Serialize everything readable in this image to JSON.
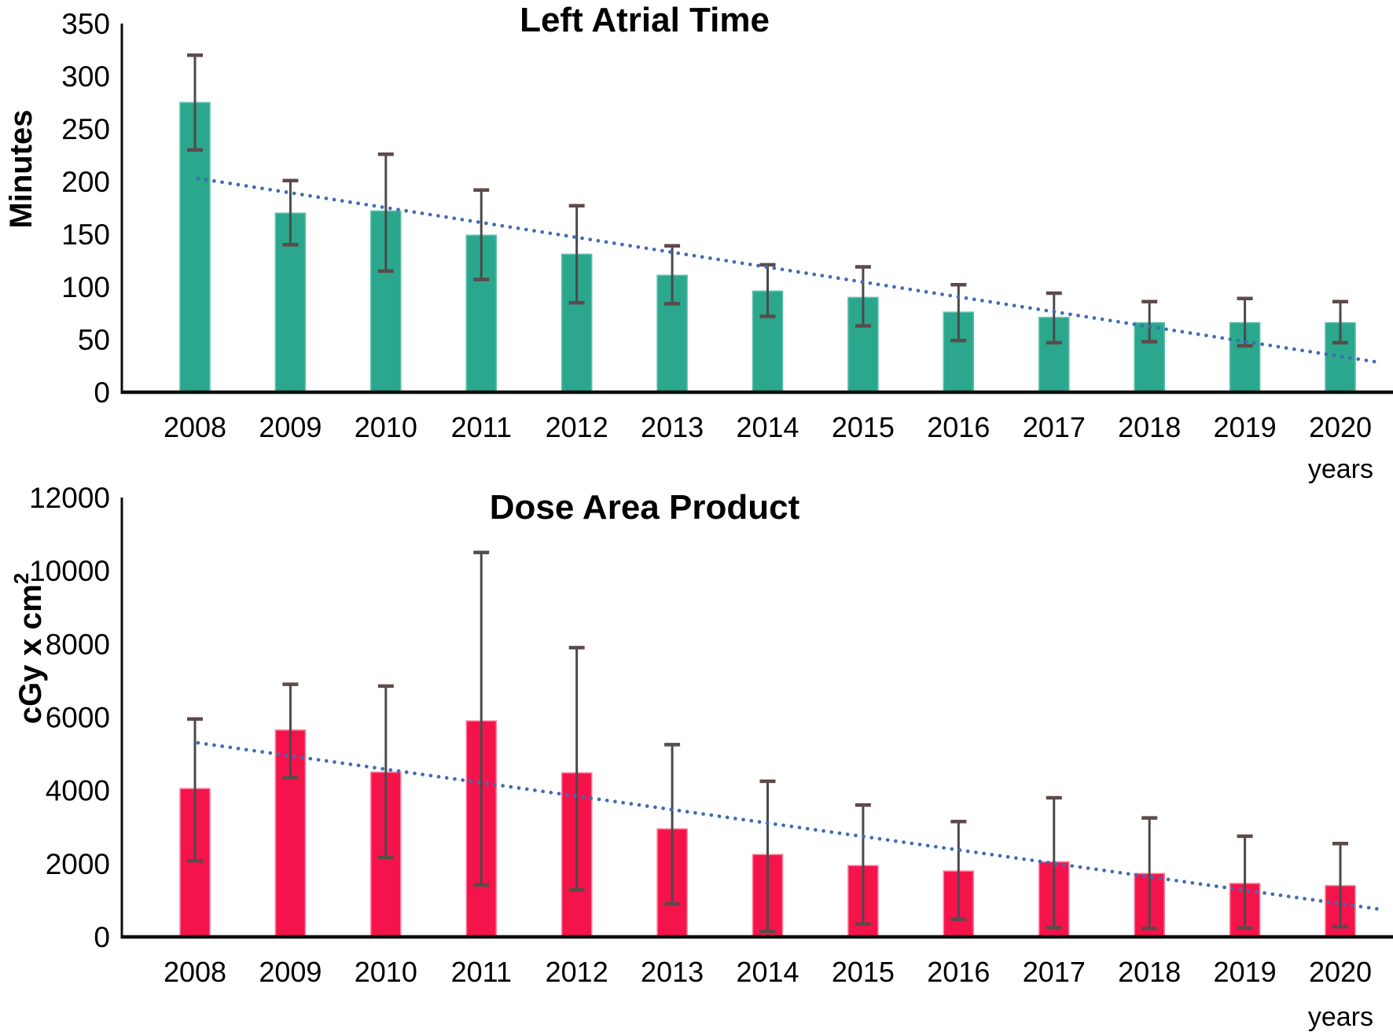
{
  "figure": {
    "background": "#ffffff",
    "description": "Two stacked bar charts with error bars and dotted trendlines"
  },
  "chart_data": [
    {
      "type": "bar",
      "title": "Left Atrial Time",
      "ylabel": "Minutes",
      "ylabel_sup": "",
      "xlabel": "years",
      "ylim": [
        0,
        350
      ],
      "ytick_step": 50,
      "grid": false,
      "legend": false,
      "categories": [
        "2008",
        "2009",
        "2010",
        "2011",
        "2012",
        "2013",
        "2014",
        "2015",
        "2016",
        "2017",
        "2018",
        "2019",
        "2020"
      ],
      "values": [
        275,
        170,
        172,
        149,
        131,
        111,
        96,
        90,
        76,
        71,
        66,
        66,
        66
      ],
      "error_low": [
        230,
        140,
        115,
        107,
        85,
        84,
        72,
        63,
        49,
        47,
        48,
        44,
        47
      ],
      "error_high": [
        320,
        201,
        226,
        192,
        177,
        139,
        121,
        119,
        102,
        94,
        86,
        89,
        86
      ],
      "trendline": {
        "style": "dotted",
        "start_value": 203,
        "end_value": 28
      },
      "colors": {
        "bar": "#2aa78d",
        "bar_edge": "#5fc0aa",
        "error_line": "#4a4a4a",
        "error_cap": "#5d4a4a",
        "trend": "#3f6cb5",
        "axis": "#0d0d0d",
        "text": "#000000"
      }
    },
    {
      "type": "bar",
      "title": "Dose Area Product",
      "ylabel": "cGy x cm",
      "ylabel_sup": "2",
      "xlabel": "years",
      "ylim": [
        0,
        12000
      ],
      "ytick_step": 2000,
      "grid": false,
      "legend": false,
      "categories": [
        "2008",
        "2009",
        "2010",
        "2011",
        "2012",
        "2013",
        "2014",
        "2015",
        "2016",
        "2017",
        "2018",
        "2019",
        "2020"
      ],
      "values": [
        4050,
        5650,
        4500,
        5900,
        4480,
        2950,
        2250,
        1950,
        1800,
        2050,
        1730,
        1460,
        1400
      ],
      "error_low": [
        2080,
        4350,
        2170,
        1420,
        1280,
        900,
        150,
        350,
        480,
        250,
        230,
        240,
        280
      ],
      "error_high": [
        5950,
        6900,
        6850,
        10500,
        7900,
        5250,
        4250,
        3600,
        3150,
        3800,
        3250,
        2750,
        2550
      ],
      "trendline": {
        "style": "dotted",
        "start_value": 5300,
        "end_value": 750
      },
      "colors": {
        "bar": "#f5134b",
        "bar_edge": "#fa7f9b",
        "error_line": "#4a4a4a",
        "error_cap": "#5d4a4a",
        "trend": "#3f6cb5",
        "axis": "#0d0d0d",
        "text": "#000000"
      }
    }
  ]
}
